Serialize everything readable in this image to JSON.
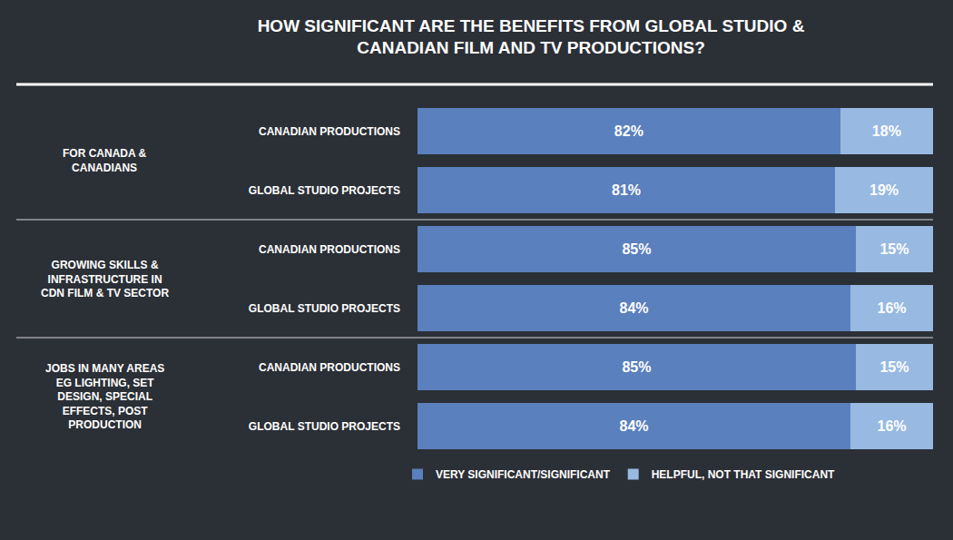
{
  "chart_data": {
    "type": "bar",
    "orientation": "horizontal",
    "stacked": true,
    "data_labels": true,
    "tick_labels": "y",
    "legend": "bottom",
    "title": "HOW SIGNIFICANT ARE THE BENEFITS FROM GLOBAL STUDIO & CANADIAN FILM AND TV PRODUCTIONS?",
    "groups": [
      {
        "label": "FOR CANADA & CANADIANS",
        "span": 2
      },
      {
        "label": "GROWING SKILLS & INFRASTRUCTURE IN CDN FILM & TV SECTOR",
        "span": 2
      },
      {
        "label": "JOBS IN MANY AREAS EG LIGHTING, SET DESIGN, SPECIAL EFFECTS, POST PRODUCTION",
        "span": 2
      }
    ],
    "categories": [
      "CANADIAN PRODUCTIONS",
      "GLOBAL STUDIO PROJECTS",
      "CANADIAN PRODUCTIONS",
      "GLOBAL STUDIO PROJECTS",
      "CANADIAN PRODUCTIONS",
      "GLOBAL STUDIO PROJECTS"
    ],
    "xlim": [
      0,
      100
    ],
    "series": [
      {
        "name": "VERY SIGNIFICANT/SIGNIFICANT",
        "color": "#5a80bd",
        "values": [
          82,
          81,
          85,
          84,
          85,
          84
        ],
        "value_labels": [
          "82%",
          "81%",
          "85%",
          "84%",
          "85%",
          "84%"
        ]
      },
      {
        "name": "HELPFUL, NOT THAT SIGNIFICANT",
        "color": "#97b9e2",
        "values": [
          18,
          19,
          15,
          16,
          15,
          16
        ],
        "value_labels": [
          "18%",
          "19%",
          "15%",
          "16%",
          "15%",
          "16%"
        ]
      }
    ]
  }
}
